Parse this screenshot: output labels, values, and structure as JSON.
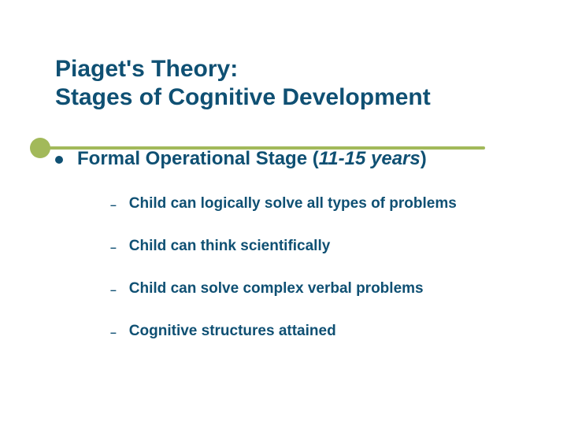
{
  "colors": {
    "primary_text": "#0f5073",
    "accent": "#a2b95a",
    "background": "#ffffff"
  },
  "title": {
    "line1": "Piaget's Theory:",
    "line2": "Stages of Cognitive Development",
    "fontsize": 30
  },
  "main_point": {
    "prefix": "Formal Operational Stage (",
    "italic_part": "11-15 years",
    "suffix": ")",
    "fontsize": 24
  },
  "sub_points": [
    "Child can logically solve all types of problems",
    "Child can think scientifically",
    "Child can solve complex verbal problems",
    "Cognitive structures attained"
  ],
  "sub_fontsize": 19
}
